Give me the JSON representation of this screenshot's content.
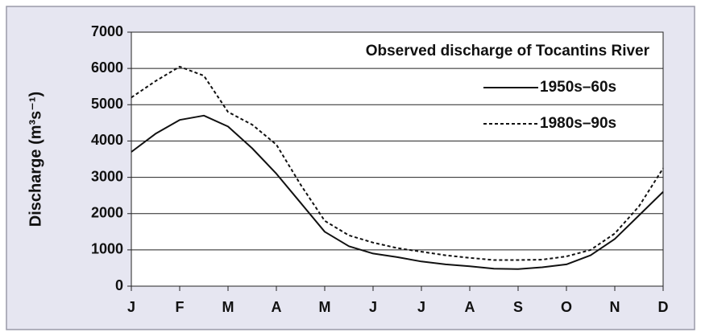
{
  "chart_data": {
    "type": "line",
    "title": "Observed discharge of Tocantins River",
    "y_label": "Discharge (m³s⁻¹)",
    "categories": [
      "J",
      null,
      "F",
      null,
      "M",
      null,
      "A",
      null,
      "M",
      null,
      "J",
      null,
      "J",
      null,
      "A",
      null,
      "S",
      null,
      "O",
      null,
      "N",
      null,
      "D"
    ],
    "series": [
      {
        "name": "1950s–60s",
        "color": "#111111",
        "style": "solid",
        "values": [
          3700,
          4200,
          4580,
          4700,
          4400,
          3800,
          3100,
          2300,
          1500,
          1100,
          900,
          800,
          680,
          600,
          550,
          480,
          470,
          520,
          600,
          850,
          1300,
          1950,
          2600
        ]
      },
      {
        "name": "1980s–90s",
        "color": "#111111",
        "style": "dashed",
        "values": [
          5200,
          5650,
          6050,
          5800,
          4800,
          4450,
          3900,
          2800,
          1800,
          1400,
          1200,
          1050,
          950,
          850,
          780,
          720,
          720,
          730,
          820,
          1000,
          1450,
          2200,
          3250
        ]
      }
    ],
    "ylim": [
      0,
      7000
    ],
    "yticks": [
      0,
      1000,
      2000,
      3000,
      4000,
      5000,
      6000,
      7000
    ],
    "grid": true,
    "legend": "upper right"
  }
}
